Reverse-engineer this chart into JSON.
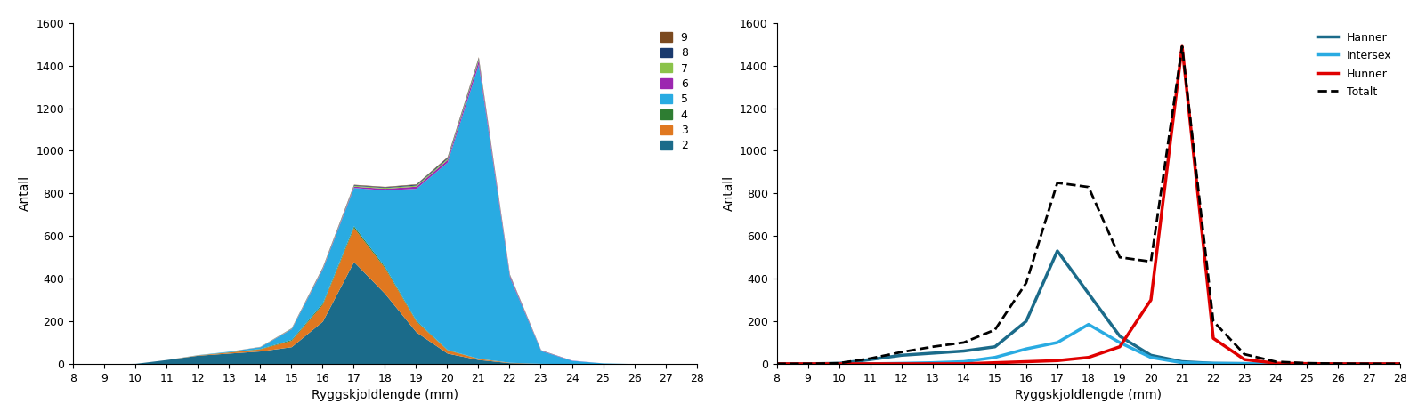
{
  "x": [
    8,
    9,
    10,
    11,
    12,
    13,
    14,
    15,
    16,
    17,
    18,
    19,
    20,
    21,
    22,
    23,
    24,
    25,
    26,
    27,
    28
  ],
  "stacked_data": {
    "2": [
      0,
      0,
      2,
      20,
      40,
      50,
      60,
      80,
      200,
      480,
      330,
      150,
      50,
      20,
      5,
      2,
      1,
      0,
      0,
      0,
      0
    ],
    "3": [
      0,
      0,
      0,
      0,
      2,
      5,
      10,
      30,
      80,
      160,
      120,
      50,
      15,
      5,
      2,
      0,
      0,
      0,
      0,
      0,
      0
    ],
    "4": [
      0,
      0,
      0,
      0,
      0,
      1,
      2,
      4,
      6,
      8,
      6,
      4,
      2,
      1,
      0,
      0,
      0,
      0,
      0,
      0,
      0
    ],
    "5": [
      0,
      0,
      0,
      0,
      1,
      3,
      8,
      50,
      160,
      180,
      360,
      620,
      880,
      1380,
      400,
      60,
      15,
      4,
      1,
      0,
      0
    ],
    "6": [
      0,
      0,
      0,
      0,
      0,
      0,
      1,
      2,
      4,
      6,
      8,
      10,
      12,
      20,
      8,
      2,
      1,
      0,
      0,
      0,
      0
    ],
    "7": [
      0,
      0,
      0,
      0,
      0,
      0,
      1,
      2,
      3,
      4,
      4,
      5,
      6,
      7,
      3,
      1,
      0,
      0,
      0,
      0,
      0
    ],
    "8": [
      0,
      0,
      0,
      0,
      0,
      0,
      0,
      1,
      2,
      3,
      3,
      4,
      5,
      5,
      2,
      1,
      0,
      0,
      0,
      0,
      0
    ],
    "9": [
      0,
      0,
      0,
      0,
      0,
      0,
      0,
      0,
      1,
      2,
      2,
      2,
      3,
      4,
      1,
      0,
      0,
      0,
      0,
      0,
      0
    ]
  },
  "stage_colors": {
    "2": "#1B6B8A",
    "3": "#E07820",
    "4": "#2E7D32",
    "5": "#29ABE2",
    "6": "#9C27B0",
    "7": "#8BC34A",
    "8": "#1A3A6E",
    "9": "#7B4A20"
  },
  "line_data": {
    "hanner": [
      0,
      0,
      2,
      20,
      40,
      50,
      60,
      80,
      200,
      530,
      330,
      130,
      40,
      10,
      2,
      1,
      0,
      0,
      0,
      0,
      0
    ],
    "intersex": [
      0,
      0,
      0,
      0,
      2,
      5,
      10,
      30,
      70,
      100,
      185,
      100,
      30,
      5,
      2,
      1,
      0,
      0,
      0,
      0,
      0
    ],
    "hunner": [
      0,
      0,
      0,
      0,
      0,
      0,
      0,
      5,
      10,
      15,
      30,
      80,
      300,
      1490,
      120,
      20,
      3,
      1,
      0,
      0,
      0
    ],
    "totalt": [
      0,
      0,
      3,
      25,
      55,
      80,
      100,
      160,
      380,
      850,
      830,
      500,
      480,
      1490,
      200,
      45,
      10,
      3,
      1,
      0,
      0
    ]
  },
  "line_colors": {
    "hanner": "#1B6B8A",
    "intersex": "#29ABE2",
    "hunner": "#E00000",
    "totalt": "#000000"
  },
  "xlabel": "Ryggskjoldlengde (mm)",
  "ylabel": "Antall",
  "xlim": [
    8,
    28
  ],
  "ylim": [
    0,
    1600
  ],
  "yticks": [
    0,
    200,
    400,
    600,
    800,
    1000,
    1200,
    1400,
    1600
  ],
  "xticks": [
    8,
    9,
    10,
    11,
    12,
    13,
    14,
    15,
    16,
    17,
    18,
    19,
    20,
    21,
    22,
    23,
    24,
    25,
    26,
    27,
    28
  ],
  "legend_labels_left": [
    "9",
    "8",
    "7",
    "6",
    "5",
    "4",
    "3",
    "2"
  ],
  "fig_bg": "#ffffff"
}
